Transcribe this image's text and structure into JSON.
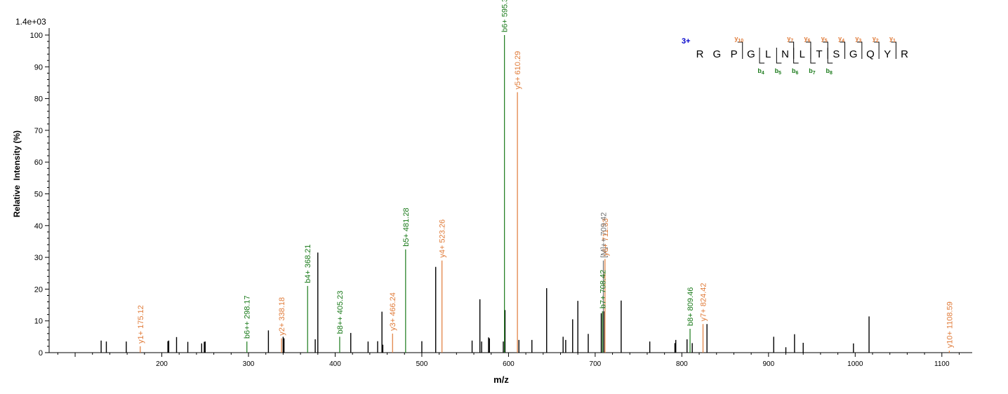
{
  "chart_data": {
    "type": "bar",
    "subtype": "mass-spectrum",
    "max_intensity_label": "1.4e+03",
    "xlabel": "m/z",
    "ylabel": "Relative  Intensity (%)",
    "xlim": [
      70,
      1135
    ],
    "ylim": [
      0,
      100
    ],
    "xticks": [
      200,
      300,
      400,
      500,
      600,
      700,
      800,
      900,
      1000,
      1100
    ],
    "yticks": [
      0,
      10,
      20,
      30,
      40,
      50,
      60,
      70,
      80,
      90,
      100
    ],
    "grid": false,
    "colors": {
      "unannotated": "#000000",
      "b_ion": "#1a7a1a",
      "y_ion": "#e07b39",
      "precursor": "#707070",
      "charge": "#0000cc"
    },
    "series": [
      {
        "name": "unannotated",
        "color": "#000000",
        "points": [
          {
            "mz": 130,
            "intensity": 3.8
          },
          {
            "mz": 136,
            "intensity": 3.5
          },
          {
            "mz": 159,
            "intensity": 3.5
          },
          {
            "mz": 207,
            "intensity": 3.6
          },
          {
            "mz": 208,
            "intensity": 3.8
          },
          {
            "mz": 217,
            "intensity": 4.9
          },
          {
            "mz": 230,
            "intensity": 3.4
          },
          {
            "mz": 246,
            "intensity": 2.9
          },
          {
            "mz": 249,
            "intensity": 3.4
          },
          {
            "mz": 250,
            "intensity": 3.5
          },
          {
            "mz": 323,
            "intensity": 7.0
          },
          {
            "mz": 340,
            "intensity": 5.0
          },
          {
            "mz": 341,
            "intensity": 4.5
          },
          {
            "mz": 377,
            "intensity": 4.2
          },
          {
            "mz": 380,
            "intensity": 31.5
          },
          {
            "mz": 418,
            "intensity": 6.2
          },
          {
            "mz": 438,
            "intensity": 3.5
          },
          {
            "mz": 449,
            "intensity": 3.6
          },
          {
            "mz": 454,
            "intensity": 12.9
          },
          {
            "mz": 455,
            "intensity": 2.5
          },
          {
            "mz": 500,
            "intensity": 3.6
          },
          {
            "mz": 516,
            "intensity": 27.0
          },
          {
            "mz": 558,
            "intensity": 3.8
          },
          {
            "mz": 567,
            "intensity": 16.8
          },
          {
            "mz": 569,
            "intensity": 3.5
          },
          {
            "mz": 577,
            "intensity": 4.8
          },
          {
            "mz": 578,
            "intensity": 4.5
          },
          {
            "mz": 594,
            "intensity": 3.5
          },
          {
            "mz": 596,
            "intensity": 13.4
          },
          {
            "mz": 612,
            "intensity": 4.0
          },
          {
            "mz": 627,
            "intensity": 4.0
          },
          {
            "mz": 644,
            "intensity": 20.3
          },
          {
            "mz": 663,
            "intensity": 5.0
          },
          {
            "mz": 666,
            "intensity": 4.0
          },
          {
            "mz": 674,
            "intensity": 10.5
          },
          {
            "mz": 680,
            "intensity": 16.3
          },
          {
            "mz": 692,
            "intensity": 5.9
          },
          {
            "mz": 707,
            "intensity": 12.4
          },
          {
            "mz": 710,
            "intensity": 13.0
          },
          {
            "mz": 730,
            "intensity": 16.4
          },
          {
            "mz": 763,
            "intensity": 3.5
          },
          {
            "mz": 792,
            "intensity": 3.0
          },
          {
            "mz": 793,
            "intensity": 4.0
          },
          {
            "mz": 806,
            "intensity": 4.2
          },
          {
            "mz": 812,
            "intensity": 3.0
          },
          {
            "mz": 829,
            "intensity": 9.0
          },
          {
            "mz": 906,
            "intensity": 5.0
          },
          {
            "mz": 920,
            "intensity": 1.7
          },
          {
            "mz": 930,
            "intensity": 5.8
          },
          {
            "mz": 940,
            "intensity": 3.1
          },
          {
            "mz": 998,
            "intensity": 2.9
          },
          {
            "mz": 1016,
            "intensity": 11.4
          }
        ]
      },
      {
        "name": "b ions",
        "color": "#1a7a1a",
        "points": [
          {
            "mz": 298.17,
            "intensity": 3.5,
            "label": "b6++ 298.17"
          },
          {
            "mz": 368.21,
            "intensity": 21.0,
            "label": "b4+ 368.21"
          },
          {
            "mz": 405.23,
            "intensity": 5.0,
            "label": "b8++ 405.23"
          },
          {
            "mz": 481.28,
            "intensity": 32.5,
            "label": "b5+ 481.28"
          },
          {
            "mz": 595.33,
            "intensity": 100,
            "label": "b6+ 595.33"
          },
          {
            "mz": 708.42,
            "intensity": 13.0,
            "label": "b7+ 708.42"
          },
          {
            "mz": 809.46,
            "intensity": 7.5,
            "label": "b8+ 809.46"
          }
        ]
      },
      {
        "name": "y ions",
        "color": "#e07b39",
        "points": [
          {
            "mz": 175.12,
            "intensity": 2.0,
            "label": "y1+ 175.12"
          },
          {
            "mz": 338.18,
            "intensity": 4.5,
            "label": "y2+ 338.18"
          },
          {
            "mz": 466.24,
            "intensity": 6.0,
            "label": "y3+ 466.24"
          },
          {
            "mz": 523.26,
            "intensity": 29.0,
            "label": "y4+ 523.26"
          },
          {
            "mz": 610.29,
            "intensity": 82.0,
            "label": "y5+ 610.29"
          },
          {
            "mz": 711.33,
            "intensity": 29.5,
            "label": "y6+ 711.33"
          },
          {
            "mz": 824.42,
            "intensity": 9.0,
            "label": "y7+ 824.42"
          },
          {
            "mz": 1108.59,
            "intensity": 0.6,
            "label": "y10+ 1108.59"
          }
        ]
      },
      {
        "name": "precursor",
        "color": "#707070",
        "points": [
          {
            "mz": 709.42,
            "intensity": 29.0,
            "label": "[M]++ 709.42"
          }
        ]
      }
    ],
    "sequence": {
      "charge": "3+",
      "residues": [
        "R",
        "G",
        "P",
        "G",
        "L",
        "N",
        "L",
        "T",
        "S",
        "G",
        "Q",
        "Y",
        "R"
      ],
      "y_labels": [
        {
          "name": "y",
          "num": "10",
          "after": 3
        },
        {
          "name": "y",
          "num": "7",
          "after": 6
        },
        {
          "name": "y",
          "num": "6",
          "after": 7
        },
        {
          "name": "y",
          "num": "5",
          "after": 8
        },
        {
          "name": "y",
          "num": "4",
          "after": 9
        },
        {
          "name": "y",
          "num": "3",
          "after": 10
        },
        {
          "name": "y",
          "num": "2",
          "after": 11
        },
        {
          "name": "y",
          "num": "1",
          "after": 12
        }
      ],
      "b_labels": [
        {
          "name": "b",
          "num": "4",
          "after": 4
        },
        {
          "name": "b",
          "num": "5",
          "after": 5
        },
        {
          "name": "b",
          "num": "6",
          "after": 6
        },
        {
          "name": "b",
          "num": "7",
          "after": 7
        },
        {
          "name": "b",
          "num": "8",
          "after": 8
        }
      ]
    }
  }
}
